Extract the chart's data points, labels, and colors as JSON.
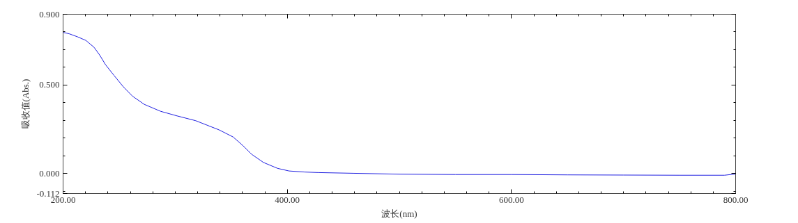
{
  "chart_data": {
    "type": "line",
    "xlabel": "波长(nm)",
    "ylabel": "吸收值(Abs.)",
    "x": [
      200,
      205.8,
      213.1,
      220.4,
      227.7,
      232.9,
      238,
      245.4,
      253.8,
      262,
      272.5,
      287,
      301.7,
      318.3,
      339.2,
      351.7,
      360,
      368.3,
      378.8,
      391.3,
      401.6,
      415.6,
      428,
      459,
      500,
      550,
      600,
      650,
      700,
      750,
      790,
      800
    ],
    "series": [
      {
        "color": "#2020e0",
        "values": [
          0.798,
          0.789,
          0.772,
          0.752,
          0.713,
          0.667,
          0.614,
          0.555,
          0.49,
          0.437,
          0.391,
          0.352,
          0.326,
          0.299,
          0.247,
          0.207,
          0.161,
          0.109,
          0.063,
          0.03,
          0.015,
          0.009,
          0.006,
          0.002,
          -0.003,
          -0.005,
          -0.005,
          -0.007,
          -0.008,
          -0.009,
          -0.009,
          -0.002
        ]
      }
    ],
    "xlim": [
      200,
      800
    ],
    "ylim": [
      -0.112,
      0.9
    ],
    "xticks": [
      {
        "value": 200,
        "label": "200.00"
      },
      {
        "value": 400,
        "label": "400.00"
      },
      {
        "value": 600,
        "label": "600.00"
      },
      {
        "value": 800,
        "label": "800.00"
      }
    ],
    "yticks": [
      {
        "value": -0.112,
        "label": "-0.112"
      },
      {
        "value": 0,
        "label": "0.000"
      },
      {
        "value": 0.5,
        "label": "0.500"
      },
      {
        "value": 0.9,
        "label": "0.900"
      }
    ],
    "grid": false,
    "marker": "none",
    "line_style": "solid"
  }
}
